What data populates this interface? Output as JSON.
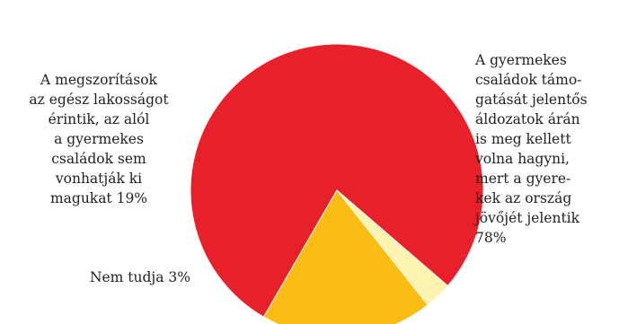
{
  "chart_data": {
    "type": "pie",
    "title": "",
    "start_angle_deg": 210,
    "direction": "clockwise",
    "slices": [
      {
        "label": "A gyermekes\ncsaládok támo-\ngatását jelentős\náldozatok árán\nis meg kellett\nvolna hagyni,\nmert a gyere-\nkek az ország\njövőjét jelentik\n78%",
        "value": 78,
        "color": "#e8202a"
      },
      {
        "label": "Nem tudja 3%",
        "value": 3,
        "color": "#fdf3b0"
      },
      {
        "label": "A megszorítások\naz egész lakosságot\nérintik, az alól\na gyermekes\ncsaládok sem\nvonhatják ki\nmagukat 19%",
        "value": 19,
        "color": "#fbbd14"
      }
    ]
  }
}
